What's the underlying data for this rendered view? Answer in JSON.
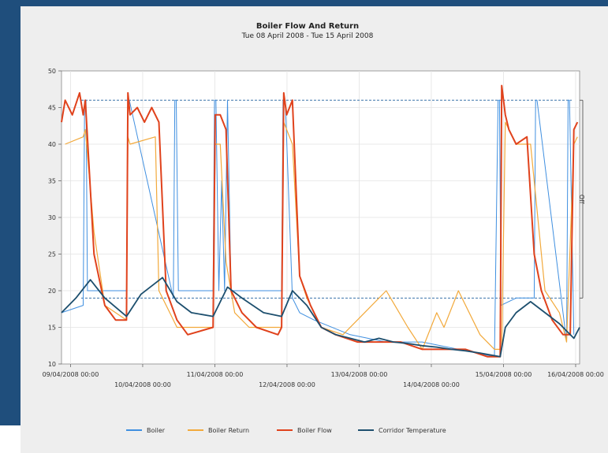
{
  "colors": {
    "page_background": "#1f4e7c",
    "panel": "#eeeeee",
    "plot_background": "#ffffff",
    "boiler": "#3f8fe0",
    "boiler_return": "#f2a93b",
    "boiler_flow": "#e0421c",
    "corridor_temperature": "#1d4f6e",
    "threshold": "#1f5f9e"
  },
  "chart_data": {
    "type": "line",
    "title": "Boiler Flow And Return",
    "subtitle": "Tue 08 April 2008 - Tue 15 April 2008",
    "xlabel": "",
    "ylabel": "",
    "ylim": [
      10,
      50
    ],
    "yticks": [
      10,
      15,
      20,
      25,
      30,
      35,
      40,
      45,
      50
    ],
    "ytick_labels": [
      "10",
      "15",
      "20",
      "25",
      "30",
      "35",
      "40",
      "45",
      "50"
    ],
    "xlim": [
      0,
      7.18
    ],
    "x_unit": "days from 08/04/2008 21:00",
    "xticks": [
      {
        "x": 0.125,
        "label": "09/04/2008 00:00",
        "row": 0
      },
      {
        "x": 1.125,
        "label": "10/04/2008 00:00",
        "row": 1
      },
      {
        "x": 2.125,
        "label": "11/04/2008 00:00",
        "row": 0
      },
      {
        "x": 3.125,
        "label": "12/04/2008 00:00",
        "row": 1
      },
      {
        "x": 4.125,
        "label": "13/04/2008 00:00",
        "row": 0
      },
      {
        "x": 5.125,
        "label": "14/04/2008 00:00",
        "row": 1
      },
      {
        "x": 6.125,
        "label": "15/04/2008 00:00",
        "row": 0
      },
      {
        "x": 7.125,
        "label": "16/04/2008 00:00",
        "row": 0
      }
    ],
    "grid": true,
    "legend_position": "bottom",
    "annotation": "Off",
    "threshold_levels": [
      19,
      46
    ],
    "series": [
      {
        "name": "Boiler",
        "color": "#3f8fe0",
        "x": [
          0.0,
          0.3,
          0.32,
          0.34,
          0.36,
          0.9,
          0.92,
          0.94,
          1.55,
          1.57,
          1.59,
          1.62,
          2.1,
          2.12,
          2.14,
          2.18,
          2.22,
          2.26,
          2.3,
          2.35,
          3.05,
          3.07,
          3.1,
          3.2,
          3.3,
          3.5,
          4.0,
          4.5,
          5.0,
          5.5,
          6.0,
          6.05,
          6.07,
          6.09,
          6.3,
          6.55,
          6.57,
          6.59,
          7.0,
          7.02,
          7.04,
          7.1
        ],
        "y": [
          17,
          18,
          46,
          46,
          20,
          20,
          46,
          46,
          19,
          46,
          46,
          20,
          20,
          46,
          46,
          20,
          35,
          20,
          46,
          20,
          20,
          46,
          46,
          19,
          17,
          16,
          14,
          13,
          13,
          12,
          11,
          46,
          46,
          18,
          19,
          19,
          46,
          46,
          13,
          46,
          46,
          14
        ]
      },
      {
        "name": "Boiler Return",
        "color": "#f2a93b",
        "x": [
          0.05,
          0.3,
          0.33,
          0.45,
          0.6,
          0.9,
          0.92,
          0.95,
          1.3,
          1.35,
          1.5,
          1.6,
          2.1,
          2.13,
          2.2,
          2.28,
          2.4,
          2.6,
          3.05,
          3.08,
          3.2,
          3.3,
          3.4,
          3.6,
          3.9,
          4.2,
          4.5,
          4.8,
          5.0,
          5.2,
          5.3,
          5.5,
          5.8,
          6.0,
          6.1,
          6.15,
          6.3,
          6.5,
          6.7,
          6.9,
          7.0,
          7.1,
          7.15
        ],
        "y": [
          40,
          41,
          42,
          28,
          18,
          16,
          41,
          40,
          41,
          20,
          17,
          15,
          15,
          40,
          40,
          24,
          17,
          15,
          15,
          43,
          40,
          22,
          19,
          15,
          14,
          17,
          20,
          15,
          12,
          17,
          15,
          20,
          14,
          12,
          12,
          43,
          40,
          40,
          20,
          17,
          13,
          40,
          41
        ]
      },
      {
        "name": "Boiler Flow",
        "color": "#e0421c",
        "x": [
          0.0,
          0.05,
          0.15,
          0.25,
          0.3,
          0.33,
          0.45,
          0.6,
          0.75,
          0.9,
          0.92,
          0.95,
          1.05,
          1.15,
          1.25,
          1.35,
          1.45,
          1.6,
          1.75,
          2.1,
          2.13,
          2.2,
          2.28,
          2.35,
          2.5,
          2.7,
          3.0,
          3.05,
          3.08,
          3.12,
          3.2,
          3.3,
          3.45,
          3.6,
          3.8,
          4.1,
          4.4,
          4.7,
          5.0,
          5.3,
          5.6,
          5.9,
          6.08,
          6.1,
          6.15,
          6.2,
          6.3,
          6.45,
          6.55,
          6.65,
          6.8,
          6.95,
          7.05,
          7.1,
          7.15
        ],
        "y": [
          43,
          46,
          44,
          47,
          44,
          46,
          25,
          18,
          16,
          16,
          47,
          44,
          45,
          43,
          45,
          43,
          20,
          16,
          14,
          15,
          44,
          44,
          42,
          20,
          17,
          15,
          14,
          15,
          47,
          44,
          46,
          22,
          18,
          15,
          14,
          13,
          13,
          13,
          12,
          12,
          12,
          11,
          11,
          48,
          44,
          42,
          40,
          41,
          25,
          20,
          16,
          14,
          14,
          42,
          43
        ]
      },
      {
        "name": "Corridor Temperature",
        "color": "#1d4f6e",
        "x": [
          0.0,
          0.2,
          0.4,
          0.6,
          0.9,
          1.1,
          1.4,
          1.6,
          1.8,
          2.1,
          2.3,
          2.5,
          2.8,
          3.05,
          3.2,
          3.4,
          3.6,
          3.8,
          4.0,
          4.2,
          4.4,
          4.6,
          4.8,
          5.0,
          5.2,
          5.4,
          5.6,
          5.8,
          6.08,
          6.15,
          6.3,
          6.5,
          6.7,
          6.9,
          7.1,
          7.18
        ],
        "y": [
          17,
          19,
          21.5,
          19,
          16.5,
          19.5,
          21.8,
          18.5,
          17,
          16.5,
          20.5,
          19,
          17,
          16.5,
          20,
          18,
          15,
          14,
          13.5,
          13,
          13.5,
          13,
          12.8,
          12.5,
          12.3,
          12,
          11.8,
          11.5,
          11,
          15,
          17,
          18.5,
          17,
          15.5,
          13.5,
          15
        ]
      }
    ]
  }
}
